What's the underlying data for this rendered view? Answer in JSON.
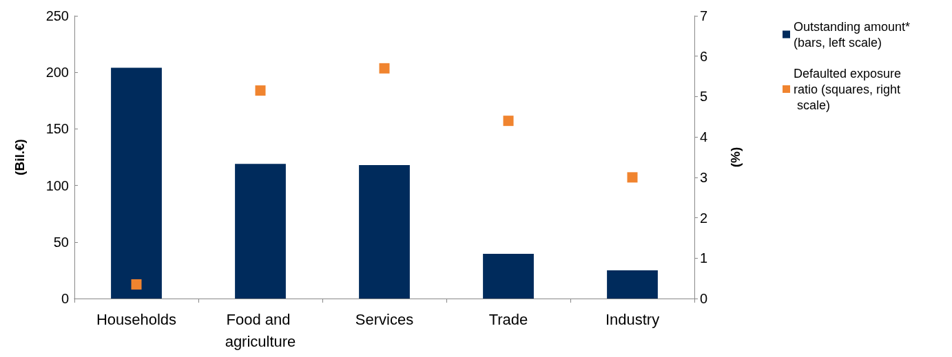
{
  "chart_data": {
    "type": "bar",
    "ylabel": "(Bil.€)",
    "y2label": "(%)",
    "categories": [
      "Households",
      "Food and agriculture",
      "Services",
      "Trade",
      "Industry"
    ],
    "series": [
      {
        "name": "Outstanding amount* (bars, left scale)",
        "color": "#002b5c",
        "values": [
          204,
          119,
          118,
          39.5,
          25
        ]
      },
      {
        "name": "Defaulted exposure ratio (squares, right scale)",
        "type": "scatter",
        "axis": "y2",
        "color": "#f0842f",
        "marker": "square",
        "values": [
          0.35,
          5.15,
          5.7,
          4.4,
          3.0
        ]
      }
    ],
    "ylim": [
      0,
      250
    ],
    "yticks": [
      0,
      50,
      100,
      150,
      200,
      250
    ],
    "y2lim": [
      0,
      7
    ],
    "y2ticks": [
      0,
      1,
      2,
      3,
      4,
      5,
      6,
      7
    ],
    "grid": false,
    "legend": "top right"
  }
}
